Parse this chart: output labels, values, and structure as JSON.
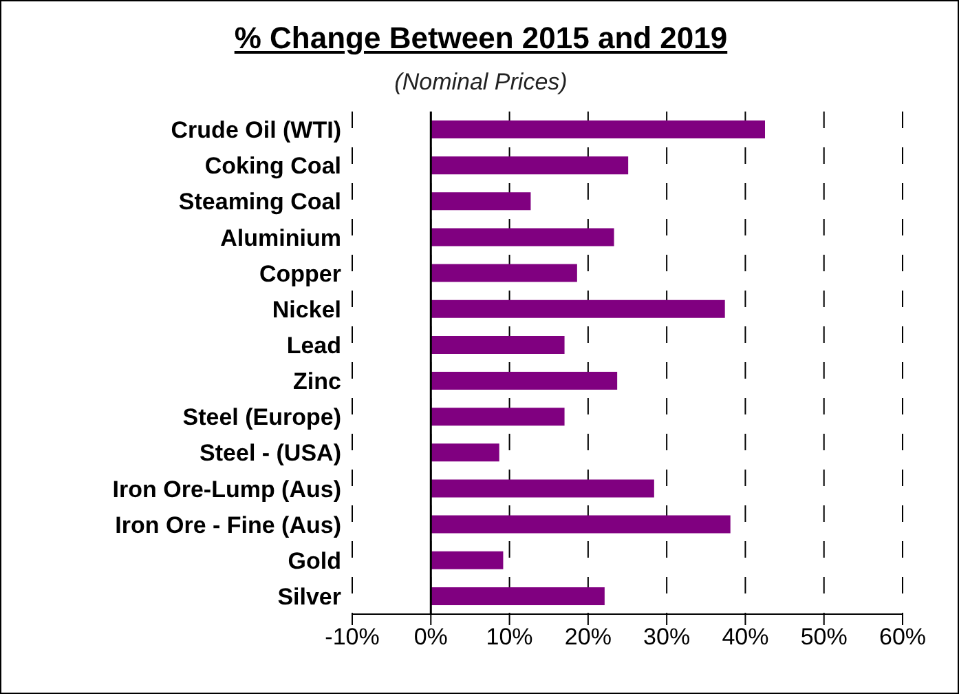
{
  "chart_data": {
    "type": "bar",
    "orientation": "horizontal",
    "title": "% Change Between 2015 and 2019",
    "subtitle": "(Nominal Prices)",
    "categories": [
      "Crude Oil (WTI)",
      "Coking Coal",
      "Steaming Coal",
      "Aluminium",
      "Copper",
      "Nickel",
      "Lead",
      "Zinc",
      "Steel (Europe)",
      "Steel - (USA)",
      "Iron Ore-Lump (Aus)",
      "Iron Ore - Fine (Aus)",
      "Gold",
      "Silver"
    ],
    "values": [
      42.5,
      25.1,
      12.7,
      23.3,
      18.6,
      37.4,
      17.0,
      23.7,
      17.0,
      8.7,
      28.4,
      38.1,
      9.2,
      22.1
    ],
    "color": "#800080",
    "xlim": [
      -10,
      60
    ],
    "xticks": [
      {
        "value": -10,
        "label": "-10%"
      },
      {
        "value": 0,
        "label": "0%"
      },
      {
        "value": 10,
        "label": "10%"
      },
      {
        "value": 20,
        "label": "20%"
      },
      {
        "value": 30,
        "label": "30%"
      },
      {
        "value": 40,
        "label": "40%"
      },
      {
        "value": 50,
        "label": "50%"
      },
      {
        "value": 60,
        "label": "60%"
      }
    ],
    "grid": "x"
  }
}
